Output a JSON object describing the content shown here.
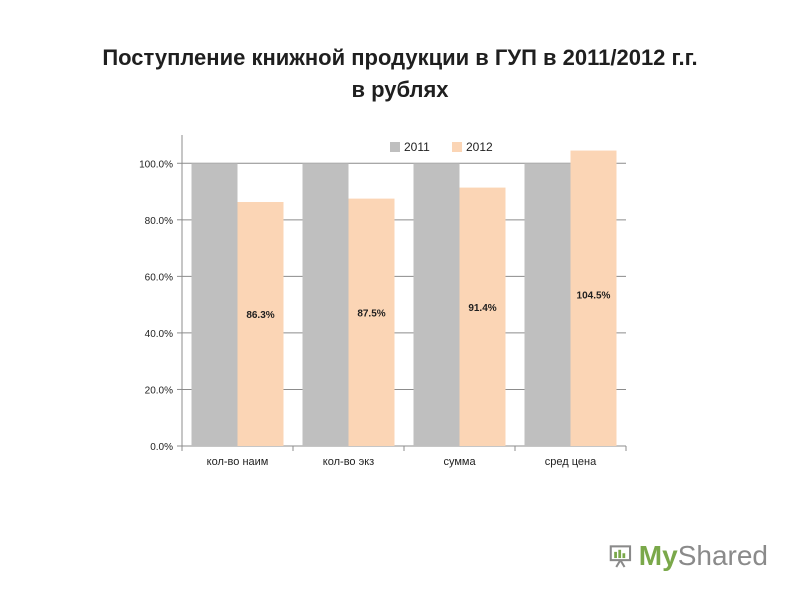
{
  "title_line1": "Поступление книжной продукции в ГУП в 2011/2012 г.г.",
  "title_line2": "в рублях",
  "watermark": {
    "text_main": "My",
    "text_rest": "Shared",
    "icon": "projector-screen-icon"
  },
  "chart_data": {
    "type": "bar",
    "title": "Поступление книжной продукции в ГУП в 2011/2012 г.г. в рублях",
    "categories": [
      "кол-во наим",
      "кол-во экз",
      "сумма",
      "сред цена"
    ],
    "series": [
      {
        "name": "2011",
        "values": [
          100.0,
          100.0,
          100.0,
          100.0
        ],
        "color": "#bfbfbf"
      },
      {
        "name": "2012",
        "values": [
          86.3,
          87.5,
          91.4,
          104.5
        ],
        "color": "#fbd5b5",
        "data_labels": [
          "86.3%",
          "87.5%",
          "91.4%",
          "104.5%"
        ]
      }
    ],
    "ylim": [
      0,
      110
    ],
    "yticks": [
      "0.0%",
      "20.0%",
      "40.0%",
      "60.0%",
      "80.0%",
      "100.0%"
    ],
    "ytick_values": [
      0,
      20,
      40,
      60,
      80,
      100
    ],
    "grid": true,
    "legend_position": "top-right"
  }
}
